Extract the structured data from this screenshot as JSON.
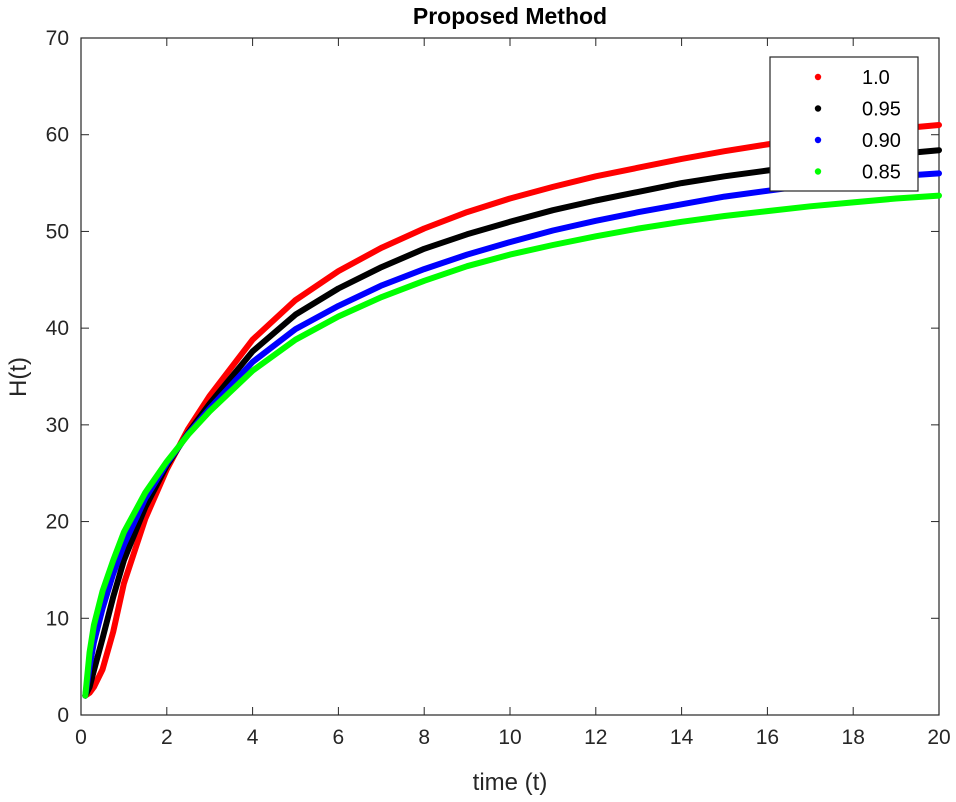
{
  "chart_data": {
    "type": "line",
    "title": "Proposed Method",
    "xlabel": "time (t)",
    "ylabel": "H(t)",
    "xlim": [
      0,
      20
    ],
    "ylim": [
      0,
      70
    ],
    "xticks": [
      0,
      2,
      4,
      6,
      8,
      10,
      12,
      14,
      16,
      18,
      20
    ],
    "yticks": [
      0,
      10,
      20,
      30,
      40,
      50,
      60,
      70
    ],
    "grid": false,
    "legend_position": "top-right",
    "x": [
      0.1,
      0.2,
      0.3,
      0.5,
      0.75,
      1,
      1.5,
      2,
      2.5,
      3,
      4,
      5,
      6,
      7,
      8,
      9,
      10,
      11,
      12,
      13,
      14,
      15,
      16,
      17,
      18,
      19,
      20
    ],
    "series": [
      {
        "name": "1.0",
        "color": "#ff0000",
        "values": [
          2.0,
          2.3,
          2.9,
          4.7,
          8.6,
          13.6,
          20.3,
          25.4,
          29.6,
          33.0,
          38.8,
          42.9,
          45.9,
          48.3,
          50.3,
          52.0,
          53.4,
          54.6,
          55.7,
          56.6,
          57.5,
          58.3,
          59.0,
          59.6,
          60.2,
          60.6,
          61.0
        ]
      },
      {
        "name": "0.95",
        "color": "#000000",
        "values": [
          2.0,
          2.9,
          4.6,
          7.9,
          12.2,
          16.0,
          21.5,
          25.8,
          29.2,
          32.2,
          37.6,
          41.4,
          44.1,
          46.3,
          48.2,
          49.7,
          51.0,
          52.2,
          53.2,
          54.1,
          55.0,
          55.7,
          56.3,
          56.9,
          57.5,
          58.0,
          58.4
        ]
      },
      {
        "name": "0.90",
        "color": "#0000ff",
        "values": [
          2.0,
          5.0,
          7.5,
          11.0,
          14.6,
          17.6,
          22.4,
          26.0,
          29.1,
          31.7,
          36.5,
          39.9,
          42.3,
          44.4,
          46.1,
          47.6,
          48.9,
          50.1,
          51.1,
          52.0,
          52.8,
          53.6,
          54.2,
          54.8,
          55.3,
          55.7,
          56.0
        ]
      },
      {
        "name": "0.85",
        "color": "#00ff00",
        "values": [
          2.0,
          6.5,
          9.3,
          12.8,
          16.0,
          18.9,
          23.0,
          26.2,
          29.0,
          31.4,
          35.6,
          38.8,
          41.2,
          43.2,
          44.9,
          46.4,
          47.6,
          48.6,
          49.5,
          50.3,
          51.0,
          51.6,
          52.1,
          52.6,
          53.0,
          53.4,
          53.7
        ]
      }
    ]
  }
}
